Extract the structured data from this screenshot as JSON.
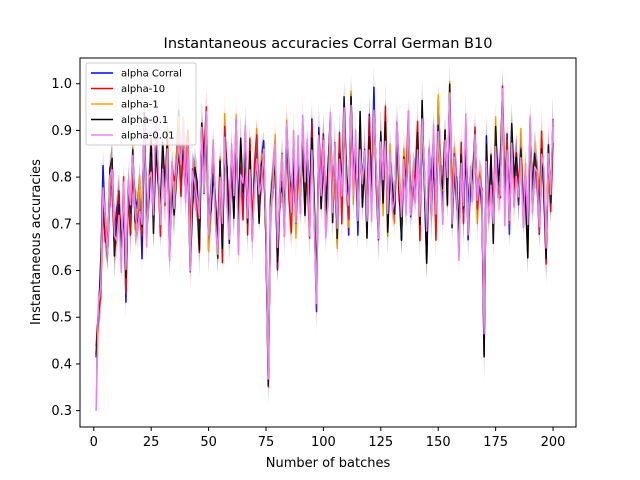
{
  "chart_data": {
    "type": "line",
    "title": "Instantaneous accuracies Corral German B10",
    "xlabel": "Number of batches",
    "ylabel": "Instantaneous accuracies",
    "xlim": [
      -6,
      210
    ],
    "ylim": [
      0.265,
      1.055
    ],
    "xticks": [
      0,
      25,
      50,
      75,
      100,
      125,
      150,
      175,
      200
    ],
    "yticks": [
      0.3,
      0.4,
      0.5,
      0.6,
      0.7,
      0.8,
      0.9,
      1.0
    ],
    "ytick_labels": [
      "0.3",
      "0.4",
      "0.5",
      "0.6",
      "0.7",
      "0.8",
      "0.9",
      "1.0"
    ],
    "grid": false,
    "legend_position": "top-left",
    "series": [
      {
        "name": "alpha Corral",
        "color": "#0000ff"
      },
      {
        "name": "alpha-10",
        "color": "#ff0000"
      },
      {
        "name": "alpha-1",
        "color": "#ffa500"
      },
      {
        "name": "alpha-0.1",
        "color": "#000000"
      },
      {
        "name": "alpha-0.01",
        "color": "#ee82ee"
      }
    ],
    "x": [
      1,
      2,
      3,
      4,
      5,
      6,
      7,
      8,
      9,
      10,
      11,
      12,
      13,
      14,
      15,
      16,
      17,
      18,
      19,
      20,
      21,
      22,
      23,
      24,
      25,
      26,
      27,
      28,
      29,
      30,
      31,
      32,
      33,
      34,
      35,
      36,
      37,
      38,
      39,
      40,
      41,
      42,
      43,
      44,
      45,
      46,
      47,
      48,
      49,
      50,
      51,
      52,
      53,
      54,
      55,
      56,
      57,
      58,
      59,
      60,
      61,
      62,
      63,
      64,
      65,
      66,
      67,
      68,
      69,
      70,
      71,
      72,
      73,
      74,
      75,
      76,
      77,
      78,
      79,
      80,
      81,
      82,
      83,
      84,
      85,
      86,
      87,
      88,
      89,
      90,
      91,
      92,
      93,
      94,
      95,
      96,
      97,
      98,
      99,
      100,
      101,
      102,
      103,
      104,
      105,
      106,
      107,
      108,
      109,
      110,
      111,
      112,
      113,
      114,
      115,
      116,
      117,
      118,
      119,
      120,
      121,
      122,
      123,
      124,
      125,
      126,
      127,
      128,
      129,
      130,
      131,
      132,
      133,
      134,
      135,
      136,
      137,
      138,
      139,
      140,
      141,
      142,
      143,
      144,
      145,
      146,
      147,
      148,
      149,
      150,
      151,
      152,
      153,
      154,
      155,
      156,
      157,
      158,
      159,
      160,
      161,
      162,
      163,
      164,
      165,
      166,
      167,
      168,
      169,
      170,
      171,
      172,
      173,
      174,
      175,
      176,
      177,
      178,
      179,
      180,
      181,
      182,
      183,
      184,
      185,
      186,
      187,
      188,
      189,
      190,
      191,
      192,
      193,
      194,
      195,
      196,
      197,
      198,
      199,
      200
    ],
    "base_values": [
      0.4,
      0.53,
      0.58,
      0.78,
      0.68,
      0.62,
      0.79,
      0.8,
      0.66,
      0.7,
      0.74,
      0.63,
      0.76,
      0.56,
      0.77,
      0.7,
      0.86,
      0.73,
      0.7,
      0.77,
      0.66,
      0.9,
      0.69,
      0.78,
      0.84,
      0.71,
      0.89,
      0.79,
      0.7,
      0.85,
      0.75,
      0.88,
      0.66,
      0.81,
      0.76,
      0.84,
      0.9,
      0.8,
      0.89,
      0.78,
      0.86,
      0.64,
      0.78,
      0.8,
      0.76,
      0.67,
      0.88,
      0.8,
      0.92,
      0.68,
      0.76,
      0.85,
      0.73,
      0.67,
      0.82,
      0.66,
      0.9,
      0.78,
      0.7,
      0.86,
      0.74,
      0.94,
      0.67,
      0.85,
      0.75,
      0.88,
      0.71,
      0.86,
      0.67,
      0.79,
      0.88,
      0.73,
      0.83,
      0.86,
      0.7,
      0.38,
      0.76,
      0.8,
      0.85,
      0.62,
      0.75,
      0.81,
      0.7,
      0.9,
      0.78,
      0.72,
      0.86,
      0.7,
      0.85,
      0.74,
      0.89,
      0.76,
      0.84,
      0.71,
      0.88,
      0.72,
      0.54,
      0.9,
      0.76,
      0.86,
      0.69,
      0.78,
      0.91,
      0.74,
      0.83,
      0.68,
      0.87,
      0.74,
      0.93,
      0.79,
      0.7,
      0.95,
      0.78,
      0.86,
      0.72,
      0.9,
      0.77,
      0.83,
      0.7,
      0.89,
      0.74,
      0.96,
      0.8,
      0.71,
      0.88,
      0.76,
      0.91,
      0.69,
      0.84,
      0.77,
      0.73,
      0.88,
      0.79,
      0.7,
      0.85,
      0.76,
      0.9,
      0.72,
      0.82,
      0.78,
      0.88,
      0.7,
      0.92,
      0.8,
      0.65,
      0.83,
      0.75,
      0.87,
      0.7,
      0.94,
      0.81,
      0.74,
      0.88,
      0.78,
      0.97,
      0.73,
      0.84,
      0.79,
      0.66,
      0.86,
      0.74,
      0.9,
      0.7,
      0.81,
      0.77,
      0.87,
      0.72,
      0.8,
      0.76,
      0.46,
      0.85,
      0.73,
      0.82,
      0.7,
      0.89,
      0.77,
      0.8,
      0.99,
      0.74,
      0.85,
      0.7,
      0.88,
      0.78,
      0.82,
      0.76,
      0.86,
      0.71,
      0.8,
      0.66,
      0.89,
      0.75,
      0.84,
      0.79,
      0.72,
      0.86,
      0.78,
      0.64,
      0.83,
      0.72,
      0.9
    ]
  }
}
